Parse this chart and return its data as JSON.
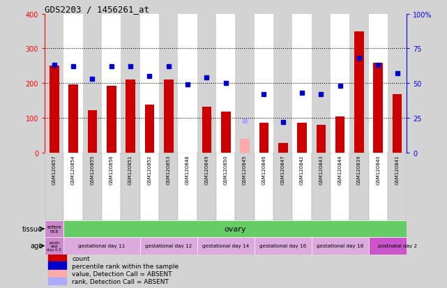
{
  "title": "GDS2203 / 1456261_at",
  "samples": [
    "GSM120857",
    "GSM120854",
    "GSM120855",
    "GSM120856",
    "GSM120851",
    "GSM120852",
    "GSM120853",
    "GSM120848",
    "GSM120849",
    "GSM120850",
    "GSM120845",
    "GSM120846",
    "GSM120847",
    "GSM120842",
    "GSM120843",
    "GSM120844",
    "GSM120839",
    "GSM120840",
    "GSM120841"
  ],
  "counts": [
    250,
    197,
    122,
    192,
    210,
    138,
    210,
    0,
    132,
    118,
    40,
    85,
    28,
    85,
    80,
    103,
    350,
    258,
    168
  ],
  "count_absent": [
    false,
    false,
    false,
    false,
    false,
    false,
    false,
    false,
    false,
    false,
    true,
    false,
    false,
    false,
    false,
    false,
    false,
    false,
    false
  ],
  "percentile_ranks": [
    63,
    62,
    53,
    62,
    62,
    55,
    62,
    49,
    54,
    50,
    23,
    42,
    22,
    43,
    42,
    48,
    68,
    63,
    57
  ],
  "rank_absent": [
    false,
    false,
    false,
    false,
    false,
    false,
    false,
    false,
    false,
    false,
    true,
    false,
    false,
    false,
    false,
    false,
    false,
    false,
    false
  ],
  "bar_color": "#cc0000",
  "bar_absent_color": "#ffaaaa",
  "dot_color": "#0000cc",
  "dot_absent_color": "#aaaaff",
  "ylim_left": [
    0,
    400
  ],
  "ylim_right": [
    0,
    100
  ],
  "yticks_left": [
    0,
    100,
    200,
    300,
    400
  ],
  "ytick_labels_left": [
    "0",
    "100",
    "200",
    "300",
    "400"
  ],
  "ytick_labels_right": [
    "0",
    "25",
    "50",
    "75",
    "100%"
  ],
  "grid_values": [
    100,
    200,
    300
  ],
  "tissue_row": {
    "label": "tissue",
    "first_cell": "refere\nnce",
    "first_color": "#cc88cc",
    "main_label": "ovary",
    "main_color": "#66cc66"
  },
  "age_row": {
    "label": "age",
    "first_cell": "postn\natal\nday 0.5",
    "first_color": "#cc88cc",
    "segments": [
      {
        "label": "gestational day 11",
        "color": "#ddaadd",
        "count": 4
      },
      {
        "label": "gestational day 12",
        "color": "#ddaadd",
        "count": 3
      },
      {
        "label": "gestational day 14",
        "color": "#ddaadd",
        "count": 3
      },
      {
        "label": "gestational day 16",
        "color": "#ddaadd",
        "count": 3
      },
      {
        "label": "gestational day 18",
        "color": "#ddaadd",
        "count": 3
      },
      {
        "label": "postnatal day 2",
        "color": "#cc55cc",
        "count": 3
      }
    ]
  },
  "legend": [
    {
      "color": "#cc0000",
      "label": "count"
    },
    {
      "color": "#0000cc",
      "label": "percentile rank within the sample"
    },
    {
      "color": "#ffaaaa",
      "label": "value, Detection Call = ABSENT"
    },
    {
      "color": "#aaaaff",
      "label": "rank, Detection Call = ABSENT"
    }
  ],
  "background_color": "#d3d3d3",
  "plot_bg_color": "#ffffff",
  "col_bg_even": "#d3d3d3",
  "col_bg_odd": "#ffffff"
}
